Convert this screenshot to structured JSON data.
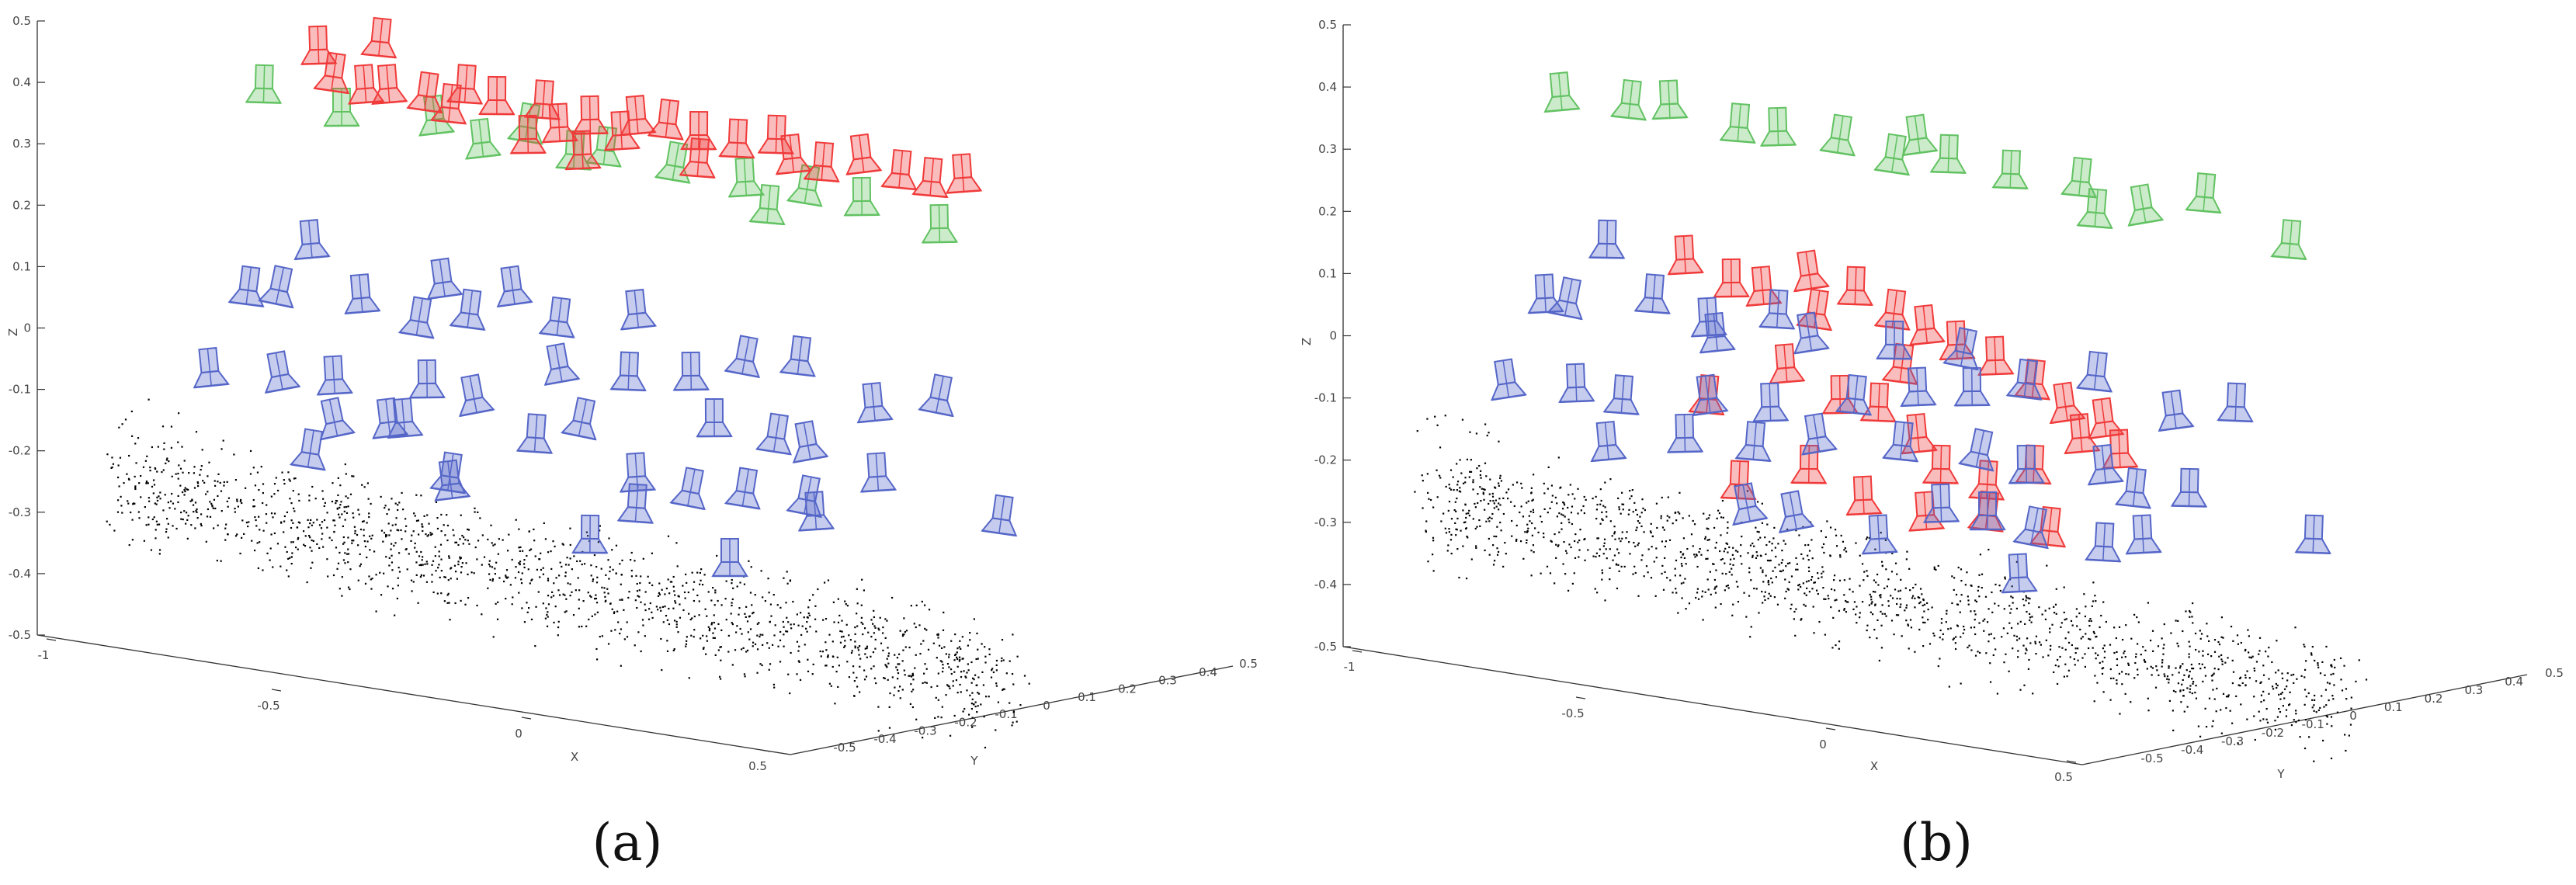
{
  "chart_data": [
    {
      "type": "scatter",
      "panel_label": "(a)",
      "xlabel": "X",
      "ylabel": "Y",
      "zlabel": "Z",
      "xlim": [
        -1,
        0.5
      ],
      "ylim": [
        -0.5,
        0.5
      ],
      "zlim": [
        -0.5,
        0.5
      ],
      "z_ticks": [
        "0.5",
        "0.4",
        "0.3",
        "0.2",
        "0.1",
        "0",
        "-0.1",
        "-0.2",
        "-0.3",
        "-0.4",
        "-0.5"
      ],
      "x_ticks": [
        "-1",
        "-0.5",
        "0",
        "0.5"
      ],
      "y_ticks": [
        "-0.5",
        "-0.4",
        "-0.3",
        "-0.2",
        "-0.1",
        "0",
        "0.1",
        "0.2",
        "0.3",
        "0.4",
        "0.5"
      ],
      "grid": false,
      "series": [
        {
          "role": "ground-truth cameras (top row)",
          "color": "#62c262"
        },
        {
          "role": "estimated cameras (top row)",
          "color": "#f03a3a"
        },
        {
          "role": "cameras (middle layer)",
          "color": "#5566c8"
        },
        {
          "role": "point cloud",
          "color": "#000000"
        }
      ]
    },
    {
      "type": "scatter",
      "panel_label": "(b)",
      "xlabel": "X",
      "ylabel": "Y",
      "zlabel": "Z",
      "xlim": [
        -1,
        0.5
      ],
      "ylim": [
        -0.5,
        0.5
      ],
      "zlim": [
        -0.5,
        0.5
      ],
      "z_ticks": [
        "0.5",
        "0.4",
        "0.3",
        "0.2",
        "0.1",
        "0",
        "-0.1",
        "-0.2",
        "-0.3",
        "-0.4",
        "-0.5"
      ],
      "x_ticks": [
        "-1",
        "-0.5",
        "0",
        "0.5"
      ],
      "y_ticks": [
        "-0.5",
        "-0.4",
        "-0.3",
        "-0.2",
        "-0.1",
        "0",
        "0.1",
        "0.2",
        "0.3",
        "0.4",
        "0.5"
      ],
      "grid": false,
      "series": [
        {
          "role": "ground-truth cameras (top row)",
          "color": "#62c262"
        },
        {
          "role": "estimated cameras (middle layer)",
          "color": "#f03a3a"
        },
        {
          "role": "cameras (middle layer)",
          "color": "#5566c8"
        },
        {
          "role": "point cloud",
          "color": "#000000"
        }
      ]
    }
  ]
}
